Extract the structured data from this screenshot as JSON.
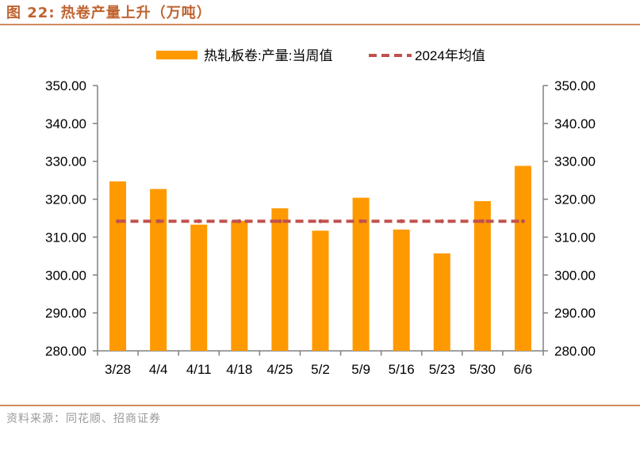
{
  "header": {
    "title": "图 22:  热卷产量上升（万吨）"
  },
  "footer": {
    "source": "资料来源：同花顺、招商证券"
  },
  "colors": {
    "bar": "#ff9900",
    "avg_line": "#c0504d",
    "axis": "#808080",
    "title": "#c0622f",
    "rule": "#d08a5f"
  },
  "chart_data": {
    "type": "bar",
    "title": "",
    "xlabel": "",
    "ylabel": "",
    "categories": [
      "3/28",
      "4/4",
      "4/11",
      "4/18",
      "4/25",
      "5/2",
      "5/9",
      "5/16",
      "5/23",
      "5/30",
      "6/6"
    ],
    "series": [
      {
        "name": "热轧板卷:产量:当周值",
        "type": "bar",
        "values": [
          324.7,
          322.7,
          313.3,
          314.3,
          317.6,
          311.7,
          320.4,
          312.0,
          305.7,
          319.5,
          328.8
        ]
      },
      {
        "name": "2024年均值",
        "type": "line",
        "style": "dashed",
        "values": [
          314.2,
          314.2,
          314.2,
          314.2,
          314.2,
          314.2,
          314.2,
          314.2,
          314.2,
          314.2,
          314.2
        ]
      }
    ],
    "ylim": [
      280,
      350
    ],
    "yticks": [
      "280.00",
      "290.00",
      "300.00",
      "310.00",
      "320.00",
      "330.00",
      "340.00",
      "350.00"
    ],
    "ytick_values": [
      280,
      290,
      300,
      310,
      320,
      330,
      340,
      350
    ],
    "legend_position": "top-center",
    "grid": false,
    "secondary_axis": true
  }
}
